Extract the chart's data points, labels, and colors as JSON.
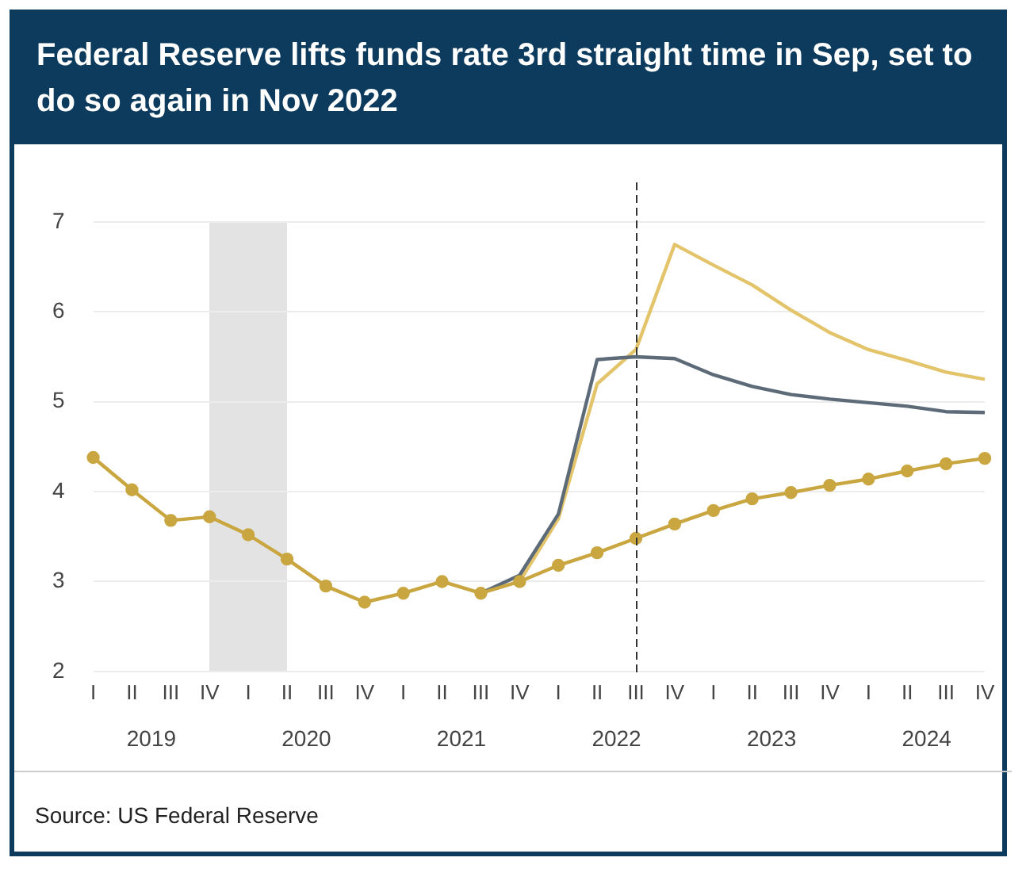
{
  "chart_data": {
    "type": "line",
    "title": "Federal Reserve lifts funds rate 3rd straight time in Sep, set to do so again in Nov 2022",
    "categories": [
      "I",
      "II",
      "III",
      "IV",
      "I",
      "II",
      "III",
      "IV",
      "I",
      "II",
      "III",
      "IV",
      "I",
      "II",
      "III",
      "IV",
      "I",
      "II",
      "III",
      "IV",
      "I",
      "II",
      "III",
      "IV"
    ],
    "series": [
      {
        "color": "#c9a640",
        "marker": "circle",
        "values": [
          4.38,
          4.02,
          3.68,
          3.72,
          3.52,
          3.25,
          2.95,
          2.77,
          2.87,
          3.0,
          2.87,
          3.0,
          3.18,
          3.32,
          3.48,
          3.64,
          3.79,
          3.92,
          3.99,
          4.07,
          4.14,
          4.23,
          4.31,
          4.37
        ]
      },
      {
        "color": "#5d6b78",
        "marker": "none",
        "values": [
          null,
          null,
          null,
          null,
          null,
          null,
          null,
          null,
          null,
          null,
          2.87,
          3.07,
          3.75,
          5.47,
          5.5,
          5.48,
          5.3,
          5.17,
          5.08,
          5.03,
          4.99,
          4.95,
          4.89,
          4.88
        ]
      },
      {
        "color": "#e3c46a",
        "marker": "none",
        "values": [
          null,
          null,
          null,
          null,
          null,
          null,
          null,
          null,
          null,
          null,
          null,
          3.0,
          3.7,
          5.2,
          5.58,
          6.75,
          6.52,
          6.3,
          6.02,
          5.77,
          5.58,
          5.46,
          5.33,
          5.25
        ]
      }
    ],
    "ylim": [
      2,
      7
    ],
    "yticks": [
      2,
      3,
      4,
      5,
      6,
      7
    ],
    "grid": "y",
    "legend": false,
    "annotations": [
      "2019",
      "2020",
      "2021",
      "2022",
      "2023",
      "2024",
      "Source: US Federal Reserve"
    ]
  }
}
